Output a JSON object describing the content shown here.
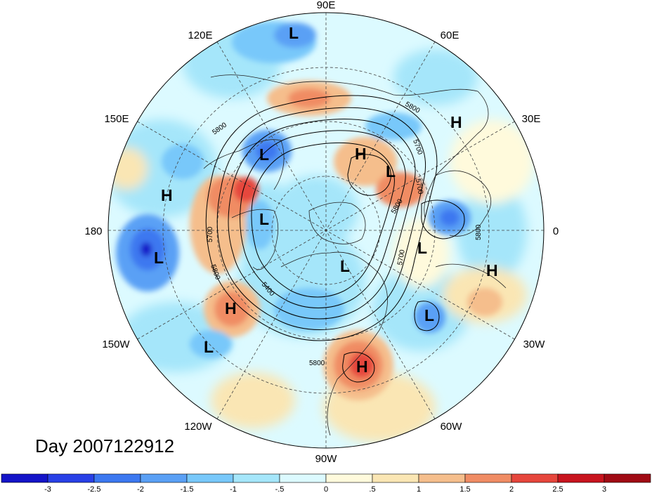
{
  "title": "Day 2007122912",
  "longitude_labels": {
    "lon_90E": "90E",
    "lon_60E": "60E",
    "lon_120E": "120E",
    "lon_30E": "30E",
    "lon_150E": "150E",
    "lon_0": "0",
    "lon_180": "180",
    "lon_30W": "30W",
    "lon_150W": "150W",
    "lon_60W": "60W",
    "lon_120W": "120W",
    "lon_90W": "90W"
  },
  "pressure_centers": [
    {
      "type": "L"
    },
    {
      "type": "L"
    },
    {
      "type": "L"
    },
    {
      "type": "L"
    },
    {
      "type": "L"
    },
    {
      "type": "L"
    },
    {
      "type": "L"
    },
    {
      "type": "L"
    },
    {
      "type": "L"
    },
    {
      "type": "H"
    },
    {
      "type": "H"
    },
    {
      "type": "H"
    },
    {
      "type": "H"
    },
    {
      "type": "H"
    },
    {
      "type": "H"
    }
  ],
  "contour_labels": [
    "5800",
    "5700",
    "5800",
    "5700",
    "5800",
    "5700",
    "5800",
    "5400",
    "5700",
    "5800",
    "5800"
  ],
  "colorbar": {
    "ticks": [
      "-3",
      "-2.5",
      "-2",
      "-1.5",
      "-1",
      "-.5",
      "0",
      ".5",
      "1",
      "1.5",
      "2",
      "2.5",
      "3"
    ],
    "colors": [
      "#1414c8",
      "#2840e6",
      "#3c78f0",
      "#5aa0f5",
      "#78c8fa",
      "#a5e6fa",
      "#dcfaff",
      "#fffadc",
      "#fae6b4",
      "#f5be8c",
      "#f08c64",
      "#e6463c",
      "#c8141e",
      "#a00a14"
    ]
  }
}
